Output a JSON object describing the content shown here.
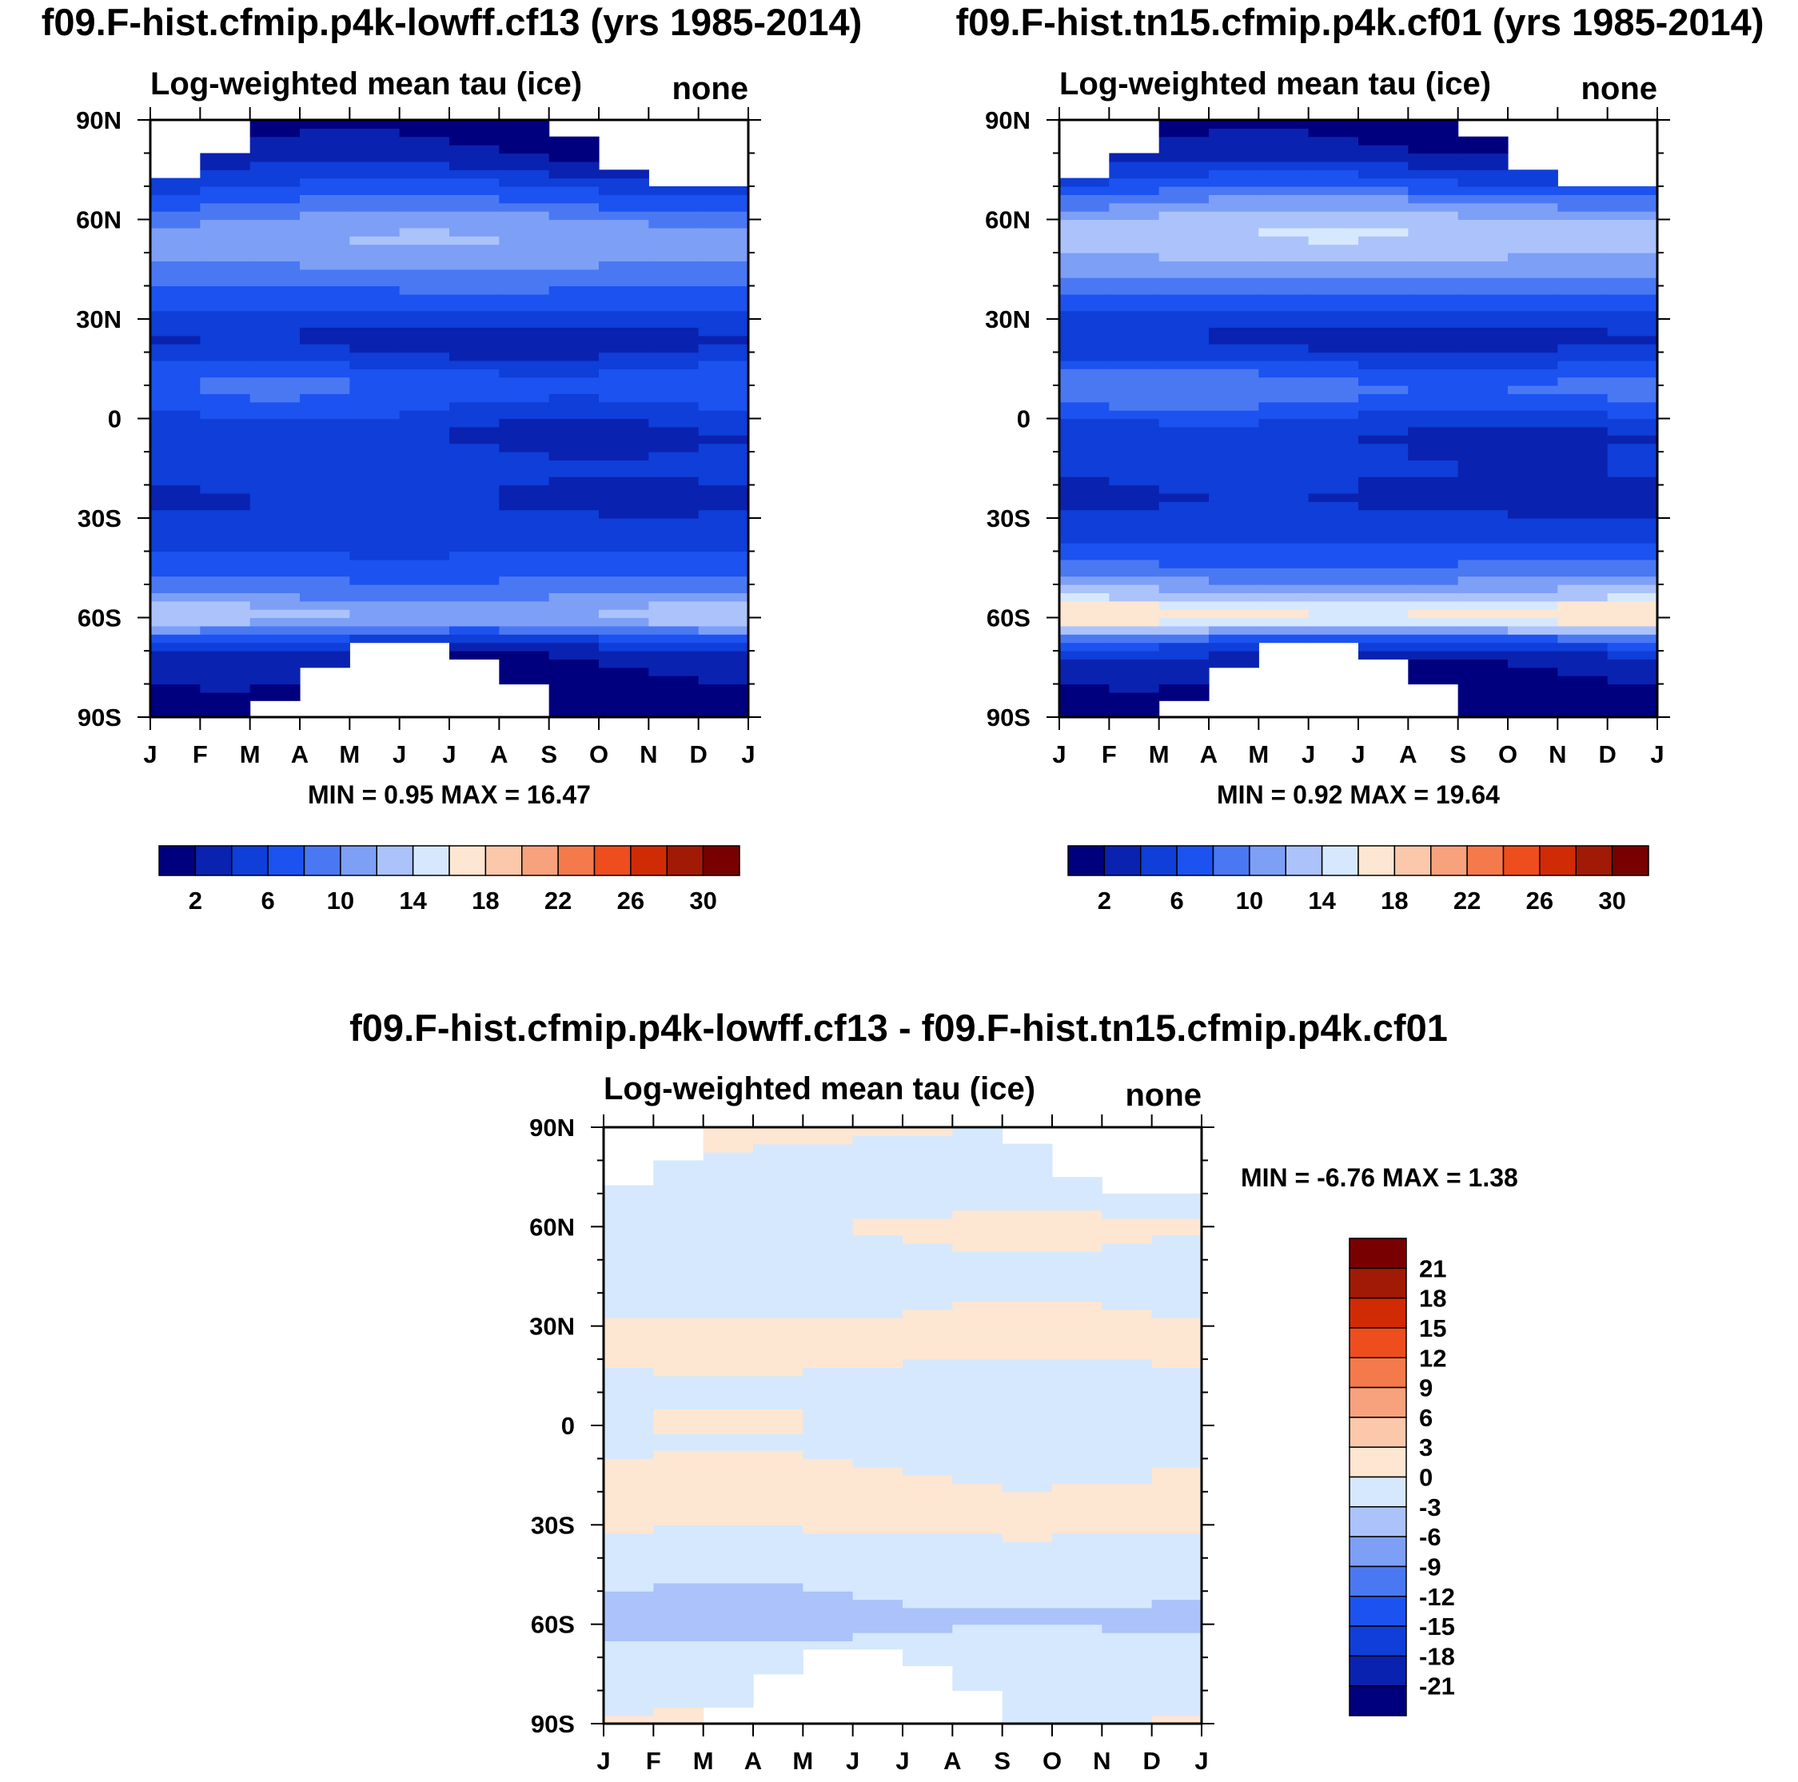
{
  "figure": {
    "panels": [
      {
        "id": "p1",
        "title": "f09.F-hist.cfmip.p4k-lowff.cf13 (yrs 1985-2014)",
        "subtitle_left": "Log-weighted mean tau (ice)",
        "subtitle_right": "none",
        "stats": "MIN =   0.95 MAX =  16.47"
      },
      {
        "id": "p2",
        "title": "f09.F-hist.tn15.cfmip.p4k.cf01 (yrs 1985-2014)",
        "subtitle_left": "Log-weighted mean tau (ice)",
        "subtitle_right": "none",
        "stats": "MIN =   0.92 MAX =  19.64"
      },
      {
        "id": "p3",
        "title": "f09.F-hist.cfmip.p4k-lowff.cf13 - f09.F-hist.tn15.cfmip.p4k.cf01",
        "subtitle_left": "Log-weighted mean tau (ice)",
        "subtitle_right": "none",
        "stats": "MIN =  -6.76 MAX =   1.38"
      }
    ]
  },
  "chart_data": [
    {
      "type": "heatmap",
      "title": "f09.F-hist.cfmip.p4k-lowff.cf13 (yrs 1985-2014)",
      "variable": "Log-weighted mean tau (ice)",
      "units": "none",
      "x": [
        "J",
        "F",
        "M",
        "A",
        "M",
        "J",
        "J",
        "A",
        "S",
        "O",
        "N",
        "D",
        "J"
      ],
      "y": [
        "90N",
        "60N",
        "30N",
        "0",
        "30S",
        "60S",
        "90S"
      ],
      "xlim": [
        0,
        12
      ],
      "ylim": [
        -90,
        90
      ],
      "min": 0.95,
      "max": 16.47,
      "colorbar": {
        "levels": [
          2,
          4,
          6,
          8,
          10,
          12,
          14,
          16,
          18,
          20,
          22,
          24,
          26,
          28,
          30
        ],
        "labels": [
          "2",
          "6",
          "10",
          "14",
          "18",
          "22",
          "26",
          "30"
        ],
        "colors": [
          "#00007f",
          "#0a22b0",
          "#0f3ed8",
          "#1c52f0",
          "#4a78f2",
          "#7d9ff6",
          "#abc3fa",
          "#d6e8fd",
          "#fde6d2",
          "#fbc8ab",
          "#f8a27d",
          "#f47a4b",
          "#ee4d1e",
          "#d12b06",
          "#a11a05",
          "#780000"
        ]
      },
      "profile": {
        "lat": [
          -90,
          -85,
          -80,
          -75,
          -70,
          -66,
          -62,
          -58,
          -55,
          -50,
          -45,
          -40,
          -35,
          -30,
          -25,
          -20,
          -15,
          -10,
          -5,
          0,
          5,
          10,
          15,
          20,
          25,
          30,
          35,
          40,
          45,
          50,
          55,
          60,
          65,
          70,
          75,
          80,
          85,
          90
        ],
        "values": [
          0.95,
          1.0,
          1.2,
          1.8,
          3.2,
          6.5,
          11.0,
          12.5,
          10.5,
          8.8,
          7.0,
          6.0,
          5.2,
          4.4,
          3.8,
          4.2,
          5.2,
          4.6,
          3.8,
          5.0,
          6.8,
          7.6,
          6.4,
          4.0,
          3.4,
          4.8,
          6.8,
          8.2,
          9.8,
          11.2,
          11.4,
          10.4,
          8.2,
          6.0,
          4.0,
          2.2,
          1.4,
          1.2
        ]
      },
      "polar_mask_months": [
        {
          "month": 0,
          "north_lat": 72,
          "south_lat": -90
        },
        {
          "month": 1,
          "north_lat": 80,
          "south_lat": -90
        },
        {
          "month": 2,
          "north_lat": 90,
          "south_lat": -85
        },
        {
          "month": 3,
          "north_lat": 90,
          "south_lat": -75
        },
        {
          "month": 4,
          "north_lat": 90,
          "south_lat": -68
        },
        {
          "month": 5,
          "north_lat": 90,
          "south_lat": -68
        },
        {
          "month": 6,
          "north_lat": 90,
          "south_lat": -72
        },
        {
          "month": 7,
          "north_lat": 90,
          "south_lat": -80
        },
        {
          "month": 8,
          "north_lat": 86,
          "south_lat": -90
        },
        {
          "month": 9,
          "north_lat": 75,
          "south_lat": -90
        },
        {
          "month": 10,
          "north_lat": 69,
          "south_lat": -90
        },
        {
          "month": 11,
          "north_lat": 69,
          "south_lat": -90
        }
      ]
    },
    {
      "type": "heatmap",
      "title": "f09.F-hist.tn15.cfmip.p4k.cf01 (yrs 1985-2014)",
      "variable": "Log-weighted mean tau (ice)",
      "units": "none",
      "x": [
        "J",
        "F",
        "M",
        "A",
        "M",
        "J",
        "J",
        "A",
        "S",
        "O",
        "N",
        "D",
        "J"
      ],
      "y": [
        "90N",
        "60N",
        "30N",
        "0",
        "30S",
        "60S",
        "90S"
      ],
      "xlim": [
        0,
        12
      ],
      "ylim": [
        -90,
        90
      ],
      "min": 0.92,
      "max": 19.64,
      "colorbar": {
        "levels": [
          2,
          4,
          6,
          8,
          10,
          12,
          14,
          16,
          18,
          20,
          22,
          24,
          26,
          28,
          30
        ],
        "labels": [
          "2",
          "6",
          "10",
          "14",
          "18",
          "22",
          "26",
          "30"
        ],
        "colors": [
          "#00007f",
          "#0a22b0",
          "#0f3ed8",
          "#1c52f0",
          "#4a78f2",
          "#7d9ff6",
          "#abc3fa",
          "#d6e8fd",
          "#fde6d2",
          "#fbc8ab",
          "#f8a27d",
          "#f47a4b",
          "#ee4d1e",
          "#d12b06",
          "#a11a05",
          "#780000"
        ]
      },
      "profile": {
        "lat": [
          -90,
          -85,
          -80,
          -75,
          -70,
          -66,
          -62,
          -58,
          -55,
          -50,
          -45,
          -40,
          -35,
          -30,
          -25,
          -20,
          -15,
          -10,
          -5,
          0,
          5,
          10,
          15,
          20,
          25,
          30,
          35,
          40,
          45,
          50,
          55,
          60,
          65,
          70,
          75,
          80,
          85,
          90
        ],
        "values": [
          0.92,
          1.0,
          1.2,
          2.0,
          3.8,
          8.0,
          15.0,
          17.2,
          14.0,
          10.8,
          8.4,
          6.6,
          5.4,
          4.4,
          3.6,
          3.6,
          4.8,
          4.4,
          4.0,
          5.6,
          8.0,
          9.0,
          7.0,
          4.2,
          3.4,
          4.6,
          7.0,
          9.0,
          11.0,
          12.6,
          13.4,
          12.8,
          10.2,
          7.0,
          4.6,
          2.4,
          1.4,
          1.2
        ]
      },
      "polar_mask_months": [
        {
          "month": 0,
          "north_lat": 72,
          "south_lat": -90
        },
        {
          "month": 1,
          "north_lat": 80,
          "south_lat": -90
        },
        {
          "month": 2,
          "north_lat": 90,
          "south_lat": -85
        },
        {
          "month": 3,
          "north_lat": 90,
          "south_lat": -75
        },
        {
          "month": 4,
          "north_lat": 90,
          "south_lat": -68
        },
        {
          "month": 5,
          "north_lat": 90,
          "south_lat": -68
        },
        {
          "month": 6,
          "north_lat": 90,
          "south_lat": -72
        },
        {
          "month": 7,
          "north_lat": 90,
          "south_lat": -80
        },
        {
          "month": 8,
          "north_lat": 86,
          "south_lat": -90
        },
        {
          "month": 9,
          "north_lat": 75,
          "south_lat": -90
        },
        {
          "month": 10,
          "north_lat": 69,
          "south_lat": -90
        },
        {
          "month": 11,
          "north_lat": 69,
          "south_lat": -90
        }
      ]
    },
    {
      "type": "heatmap",
      "title": "f09.F-hist.cfmip.p4k-lowff.cf13 - f09.F-hist.tn15.cfmip.p4k.cf01",
      "variable": "Log-weighted mean tau (ice)",
      "units": "none",
      "x": [
        "J",
        "F",
        "M",
        "A",
        "M",
        "J",
        "J",
        "A",
        "S",
        "O",
        "N",
        "D",
        "J"
      ],
      "y": [
        "90N",
        "60N",
        "30N",
        "0",
        "30S",
        "60S",
        "90S"
      ],
      "xlim": [
        0,
        12
      ],
      "ylim": [
        -90,
        90
      ],
      "min": -6.76,
      "max": 1.38,
      "colorbar": {
        "levels": [
          -21,
          -18,
          -15,
          -12,
          -9,
          -6,
          -3,
          0,
          3,
          6,
          9,
          12,
          15,
          18,
          21
        ],
        "labels": [
          "21",
          "18",
          "15",
          "12",
          "9",
          "6",
          "3",
          "0",
          "-3",
          "-6",
          "-9",
          "-12",
          "-15",
          "-18",
          "-21"
        ],
        "colors": [
          "#00007f",
          "#0a22b0",
          "#0f3ed8",
          "#1c52f0",
          "#4a78f2",
          "#7d9ff6",
          "#abc3fa",
          "#d6e8fd",
          "#fde6d2",
          "#fbc8ab",
          "#f8a27d",
          "#f47a4b",
          "#ee4d1e",
          "#d12b06",
          "#a11a05",
          "#780000"
        ]
      },
      "profile": {
        "lat": [
          -90,
          -85,
          -80,
          -75,
          -70,
          -66,
          -62,
          -58,
          -55,
          -50,
          -45,
          -40,
          -35,
          -30,
          -25,
          -20,
          -15,
          -10,
          -5,
          0,
          5,
          10,
          15,
          20,
          25,
          30,
          35,
          40,
          45,
          50,
          55,
          60,
          65,
          70,
          75,
          80,
          85,
          90
        ],
        "values": [
          0.3,
          -0.4,
          -0.8,
          -1.2,
          -1.6,
          -2.0,
          -3.2,
          -4.8,
          -3.6,
          -2.4,
          -1.8,
          -1.2,
          -0.6,
          0.4,
          0.6,
          0.4,
          0.2,
          -0.3,
          -1.2,
          -0.6,
          -0.8,
          -1.4,
          -0.6,
          0.3,
          0.5,
          0.6,
          -0.3,
          -0.8,
          -1.0,
          -1.4,
          -0.4,
          0.3,
          -0.6,
          -0.8,
          -0.5,
          -0.4,
          -0.2,
          0.4
        ]
      },
      "polar_mask_months": [
        {
          "month": 0,
          "north_lat": 72,
          "south_lat": -90
        },
        {
          "month": 1,
          "north_lat": 80,
          "south_lat": -90
        },
        {
          "month": 2,
          "north_lat": 90,
          "south_lat": -85
        },
        {
          "month": 3,
          "north_lat": 90,
          "south_lat": -75
        },
        {
          "month": 4,
          "north_lat": 90,
          "south_lat": -68
        },
        {
          "month": 5,
          "north_lat": 90,
          "south_lat": -68
        },
        {
          "month": 6,
          "north_lat": 90,
          "south_lat": -72
        },
        {
          "month": 7,
          "north_lat": 90,
          "south_lat": -80
        },
        {
          "month": 8,
          "north_lat": 86,
          "south_lat": -90
        },
        {
          "month": 9,
          "north_lat": 75,
          "south_lat": -90
        },
        {
          "month": 10,
          "north_lat": 69,
          "south_lat": -90
        },
        {
          "month": 11,
          "north_lat": 69,
          "south_lat": -90
        }
      ]
    }
  ]
}
